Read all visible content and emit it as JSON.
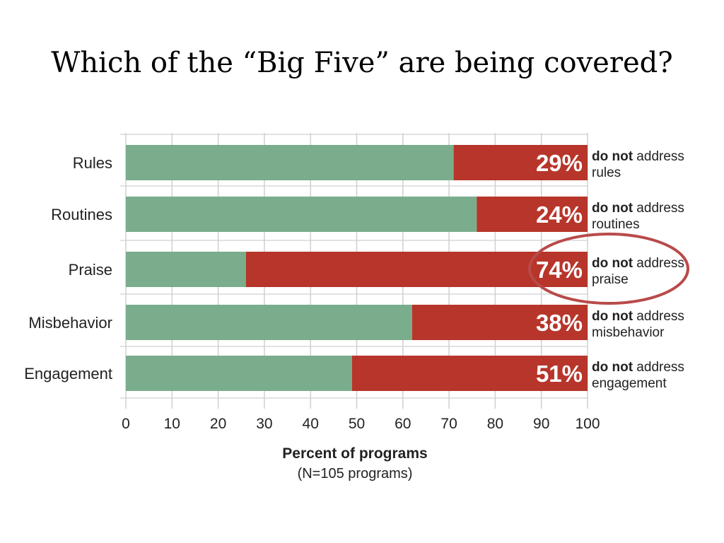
{
  "slide": {
    "title": "Which of the “Big Five” are being covered?"
  },
  "colors": {
    "addressed": "#7aad8c",
    "not_addressed": "#b7352a",
    "highlight_circle": "#b94a4a",
    "gridline": "#d0d0d0"
  },
  "chart_data": {
    "type": "bar",
    "orientation": "horizontal",
    "stacked": true,
    "categories": [
      "Rules",
      "Routines",
      "Praise",
      "Misbehavior",
      "Engagement"
    ],
    "series": [
      {
        "values": [
          71,
          76,
          26,
          62,
          49
        ]
      },
      {
        "values": [
          29,
          24,
          74,
          38,
          51
        ]
      }
    ],
    "data_labels": [
      "29%",
      "24%",
      "74%",
      "38%",
      "51%"
    ],
    "annotations": [
      {
        "bold": "do not",
        "rest": " address",
        "line2": "rules"
      },
      {
        "bold": "do not",
        "rest": " address",
        "line2": "routines"
      },
      {
        "bold": "do not",
        "rest": " address",
        "line2": "praise"
      },
      {
        "bold": "do not",
        "rest": " address",
        "line2": "misbehavior"
      },
      {
        "bold": "do not",
        "rest": " address",
        "line2": "engagement"
      }
    ],
    "highlighted_category": "Praise",
    "xlabel": "Percent of programs",
    "xsublabel": "(N=105 programs)",
    "xlim": [
      0,
      100
    ],
    "xticks": [
      0,
      10,
      20,
      30,
      40,
      50,
      60,
      70,
      80,
      90,
      100
    ],
    "grid": true
  }
}
